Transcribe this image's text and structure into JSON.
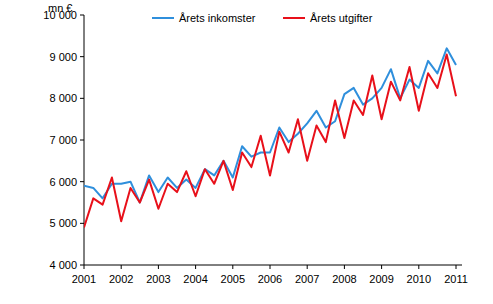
{
  "chart_data": {
    "type": "line",
    "y_label": "mn €",
    "categories": [
      "2001",
      null,
      null,
      null,
      "2002",
      null,
      null,
      null,
      "2003",
      null,
      null,
      null,
      "2004",
      null,
      null,
      null,
      "2005",
      null,
      null,
      null,
      "2006",
      null,
      null,
      null,
      "2007",
      null,
      null,
      null,
      "2008",
      null,
      null,
      null,
      "2009",
      null,
      null,
      null,
      "2010",
      null,
      null,
      null,
      "2011"
    ],
    "series": [
      {
        "name": "Årets inkomster",
        "color": "#2f8fdc",
        "values": [
          5900,
          5850,
          5600,
          5950,
          5950,
          6000,
          5500,
          6150,
          5750,
          6100,
          5850,
          6050,
          5850,
          6300,
          6150,
          6500,
          6100,
          6850,
          6600,
          6700,
          6700,
          7300,
          6950,
          7150,
          7400,
          7700,
          7300,
          7450,
          8100,
          8250,
          7850,
          8000,
          8250,
          8700,
          8000,
          8450,
          8250,
          8900,
          8600,
          9200,
          8800
        ]
      },
      {
        "name": "Årets utgifter",
        "color": "#e8101a",
        "values": [
          4900,
          5600,
          5450,
          6100,
          5050,
          5850,
          5500,
          6050,
          5350,
          5950,
          5750,
          6250,
          5650,
          6300,
          5950,
          6500,
          5800,
          6700,
          6350,
          7100,
          6150,
          7200,
          6700,
          7500,
          6500,
          7350,
          6950,
          7950,
          7050,
          7950,
          7600,
          8550,
          7500,
          8400,
          7950,
          8750,
          7700,
          8600,
          8250,
          9050,
          8050
        ]
      }
    ],
    "ylim": [
      4000,
      10000
    ],
    "yticks": [
      {
        "value": 4000,
        "label": "4 000"
      },
      {
        "value": 5000,
        "label": "5 000"
      },
      {
        "value": 6000,
        "label": "6 000"
      },
      {
        "value": 7000,
        "label": "7 000"
      },
      {
        "value": 8000,
        "label": "8 000"
      },
      {
        "value": 9000,
        "label": "9 000"
      },
      {
        "value": 10000,
        "label": "10 000"
      }
    ],
    "grid": false,
    "legend": "top"
  }
}
